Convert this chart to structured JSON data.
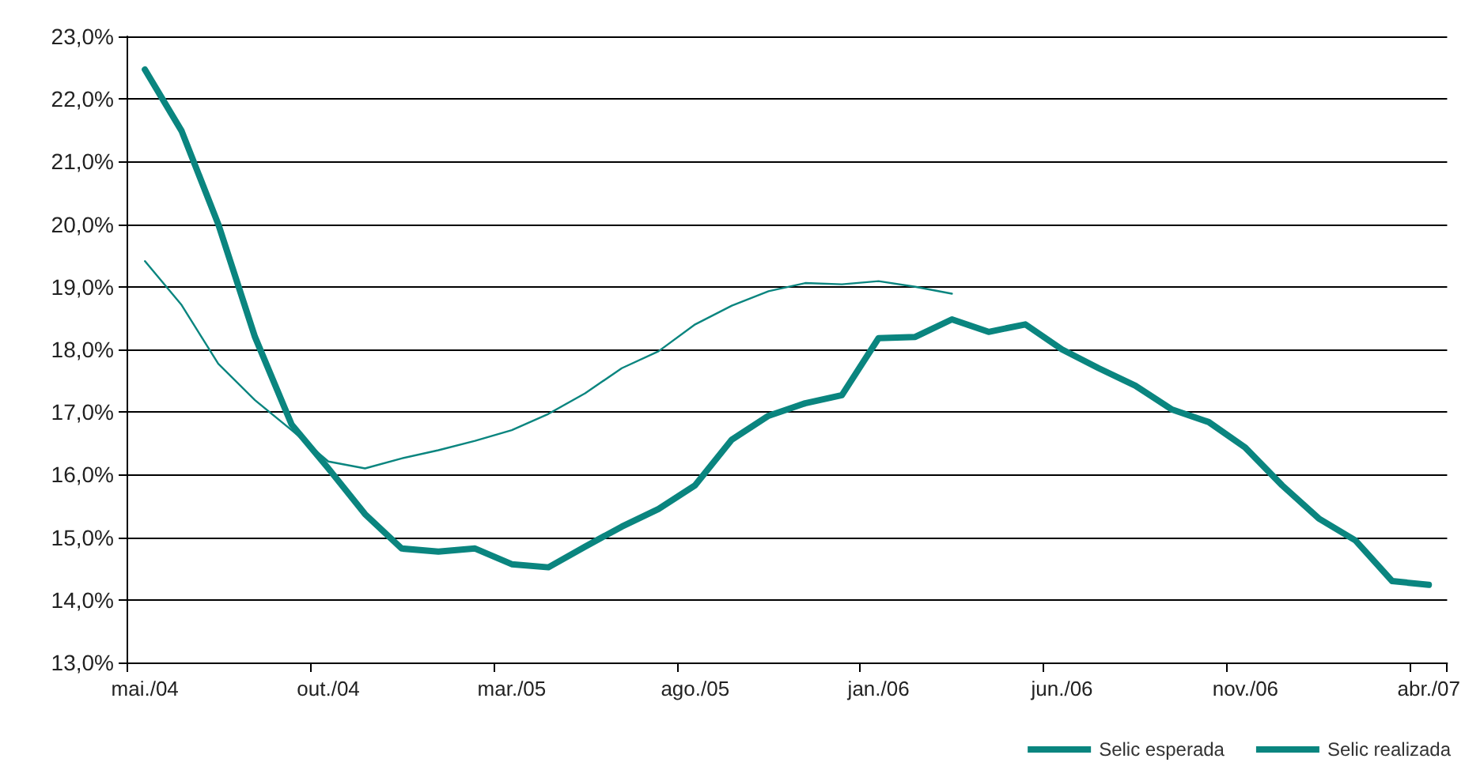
{
  "chart_data": {
    "type": "line",
    "categories": [
      "mai./04",
      null,
      null,
      null,
      null,
      "out./04",
      null,
      null,
      null,
      null,
      "mar./05",
      null,
      null,
      null,
      null,
      "ago./05",
      null,
      null,
      null,
      null,
      "jan./06",
      null,
      null,
      null,
      null,
      "jun./06",
      null,
      null,
      null,
      null,
      "nov./06",
      null,
      null,
      null,
      null,
      "abr./07"
    ],
    "series": [
      {
        "name": "Selic esperada",
        "color": "#0a857f",
        "values": [
          22.47,
          21.49,
          20.0,
          18.2,
          16.8,
          16.1,
          15.37,
          14.82,
          14.77,
          14.82,
          14.57,
          14.52,
          14.85,
          15.17,
          15.45,
          15.83,
          16.56,
          16.94,
          17.14,
          17.27,
          18.18,
          18.2,
          18.48,
          18.28,
          18.4,
          18.0,
          17.7,
          17.42,
          17.04,
          16.84,
          16.43,
          15.83,
          15.3,
          14.95,
          14.3,
          14.24
        ]
      },
      {
        "name": "Selic realizada",
        "color": "#0a857f",
        "values": [
          19.41,
          18.71,
          17.77,
          17.19,
          16.71,
          16.21,
          16.1,
          16.26,
          16.39,
          16.54,
          16.71,
          16.97,
          17.3,
          17.7,
          17.97,
          18.4,
          18.7,
          18.93,
          19.06,
          19.04,
          19.09,
          19.0,
          18.89,
          null,
          null,
          null,
          null,
          null,
          null,
          null,
          null,
          null,
          null,
          null,
          null,
          null
        ]
      }
    ],
    "ylim": [
      13,
      23
    ],
    "yticks": [
      {
        "value": 13,
        "label": "13,0%"
      },
      {
        "value": 14,
        "label": "14,0%"
      },
      {
        "value": 15,
        "label": "15,0%"
      },
      {
        "value": 16,
        "label": "16,0%"
      },
      {
        "value": 17,
        "label": "17,0%"
      },
      {
        "value": 18,
        "label": "18,0%"
      },
      {
        "value": 19,
        "label": "19,0%"
      },
      {
        "value": 20,
        "label": "20,0%"
      },
      {
        "value": 21,
        "label": "21,0%"
      },
      {
        "value": 22,
        "label": "22,0%"
      },
      {
        "value": 23,
        "label": "23,0%"
      }
    ],
    "grid": "y",
    "legend": "bottom right",
    "marker": "none"
  }
}
